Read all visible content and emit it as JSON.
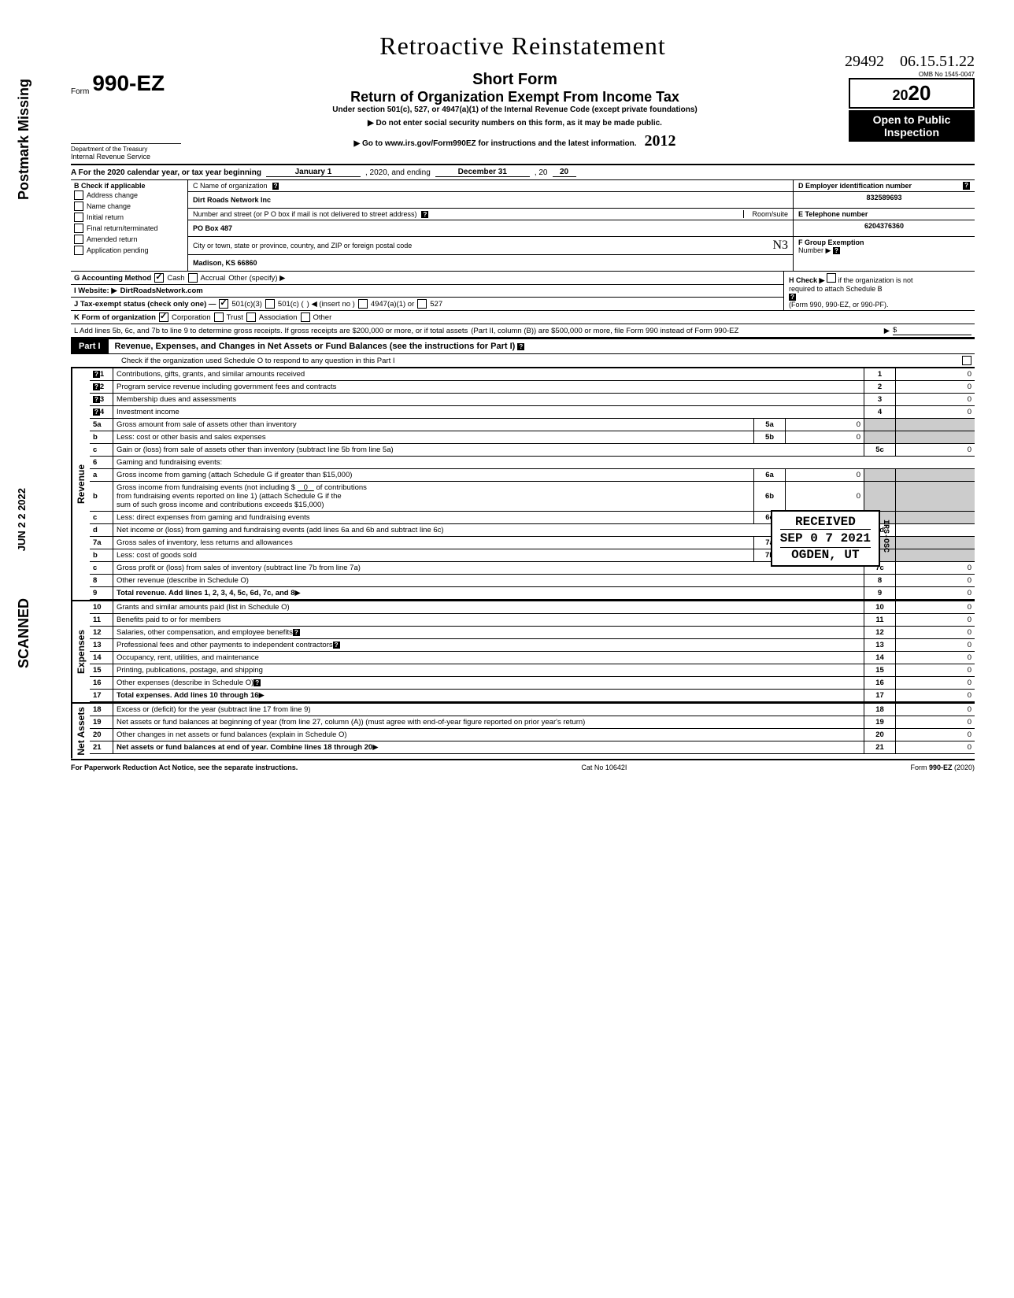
{
  "margin": {
    "postmark": "Postmark Missing",
    "scanned": "SCANNED",
    "date": "JUN 2 2 2022"
  },
  "handwritten": {
    "title": "Retroactive Reinstatement",
    "seq": "29492",
    "date": "06.15.51.22",
    "year_annot": "2012",
    "n3": "N3"
  },
  "header": {
    "form_sm": "Form",
    "form_lg": "990-EZ",
    "short": "Short Form",
    "title": "Return of Organization Exempt From Income Tax",
    "sub": "Under section 501(c), 527, or 4947(a)(1) of the Internal Revenue Code (except private foundations)",
    "line2": "▶ Do not enter social security numbers on this form, as it may be made public.",
    "line3": "▶ Go to www.irs.gov/Form990EZ for instructions and the latest information.",
    "dept1": "Department of the Treasury",
    "dept2": "Internal Revenue Service",
    "omb": "OMB No 1545-0047",
    "year": "2020",
    "open": "Open to Public",
    "inspection": "Inspection"
  },
  "rowA": {
    "label": "A For the 2020 calendar year, or tax year beginning",
    "mid": "January 1",
    "mid2": ", 2020, and ending",
    "end": "December 31",
    "end2": ", 20",
    "end3": "20"
  },
  "boxB": {
    "header": "B Check if applicable",
    "items": [
      "Address change",
      "Name change",
      "Initial return",
      "Final return/terminated",
      "Amended return",
      "Application pending"
    ]
  },
  "boxC": {
    "c_label": "C Name of organization",
    "c_value": "Dirt Roads Network Inc",
    "street_label": "Number and street (or P O box if mail is not delivered to street address)",
    "room_label": "Room/suite",
    "street_value": "PO Box 487",
    "city_label": "City or town, state or province, country, and ZIP or foreign postal code",
    "city_value": "Madison, KS 66860"
  },
  "boxD": {
    "d_label": "D Employer identification number",
    "d_value": "832589693",
    "e_label": "E Telephone number",
    "e_value": "6204376360",
    "f_label": "F Group Exemption",
    "f_label2": "Number ▶"
  },
  "rowG": {
    "label": "G Accounting Method",
    "cash": "Cash",
    "accrual": "Accrual",
    "other": "Other (specify) ▶"
  },
  "rowH": {
    "label": "H Check ▶",
    "text": "if the organization is not",
    "text2": "required to attach Schedule B",
    "text3": "(Form 990, 990-EZ, or 990-PF)."
  },
  "rowI": {
    "label": "I Website: ▶",
    "value": "DirtRoadsNetwork.com"
  },
  "rowJ": {
    "label": "J Tax-exempt status (check only one) —",
    "o1": "501(c)(3)",
    "o2": "501(c) (",
    "o2b": ") ◀ (insert no )",
    "o3": "4947(a)(1) or",
    "o4": "527"
  },
  "rowK": {
    "label": "K Form of organization",
    "o1": "Corporation",
    "o2": "Trust",
    "o3": "Association",
    "o4": "Other"
  },
  "rowL": {
    "text1": "L Add lines 5b, 6c, and 7b to line 9 to determine gross receipts. If gross receipts are $200,000 or more, or if total assets",
    "text2": "(Part II, column (B)) are $500,000 or more, file Form 990 instead of Form 990-EZ",
    "arrow": "▶",
    "amt": "$"
  },
  "part1": {
    "label": "Part I",
    "title": "Revenue, Expenses, and Changes in Net Assets or Fund Balances (see the instructions for Part I)",
    "check": "Check if the organization used Schedule O to respond to any question in this Part I"
  },
  "revenue": {
    "vlabel": "Revenue",
    "lines": [
      {
        "n": "1",
        "t": "Contributions, gifts, grants, and similar amounts received",
        "rn": "1",
        "v": "0",
        "q": true
      },
      {
        "n": "2",
        "t": "Program service revenue including government fees and contracts",
        "rn": "2",
        "v": "0",
        "q": true
      },
      {
        "n": "3",
        "t": "Membership dues and assessments",
        "rn": "3",
        "v": "0",
        "q": true
      },
      {
        "n": "4",
        "t": "Investment income",
        "rn": "4",
        "v": "0",
        "q": true
      }
    ],
    "l5a": {
      "n": "5a",
      "t": "Gross amount from sale of assets other than inventory",
      "rn": "5a",
      "v": "0"
    },
    "l5b": {
      "n": "b",
      "t": "Less: cost or other basis and sales expenses",
      "rn": "5b",
      "v": "0"
    },
    "l5c": {
      "n": "c",
      "t": "Gain or (loss) from sale of assets other than inventory (subtract line 5b from line 5a)",
      "rn": "5c",
      "v": "0"
    },
    "l6": {
      "n": "6",
      "t": "Gaming and fundraising events:"
    },
    "l6a": {
      "n": "a",
      "t": "Gross income from gaming (attach Schedule G if greater than $15,000)",
      "rn": "6a",
      "v": "0"
    },
    "l6b": {
      "n": "b",
      "t1": "Gross income from fundraising events (not including $",
      "t1v": "0",
      "t1b": "of contributions",
      "t2": "from fundraising events reported on line 1) (attach Schedule G if the",
      "t3": "sum of such gross income and contributions exceeds $15,000)",
      "rn": "6b",
      "v": "0"
    },
    "l6c": {
      "n": "c",
      "t": "Less: direct expenses from gaming and fundraising events",
      "rn": "6c",
      "v": "0"
    },
    "l6d": {
      "n": "d",
      "t": "Net income or (loss) from gaming and fundraising events (add lines 6a and 6b and subtract line 6c)",
      "rn": "6d",
      "v": ""
    },
    "l7a": {
      "n": "7a",
      "t": "Gross sales of inventory, less returns and allowances",
      "rn": "7a",
      "v": "0"
    },
    "l7b": {
      "n": "b",
      "t": "Less: cost of goods sold",
      "rn": "7b",
      "v": "0"
    },
    "l7c": {
      "n": "c",
      "t": "Gross profit or (loss) from sales of inventory (subtract line 7b from line 7a)",
      "rn": "7c",
      "v": "0"
    },
    "l8": {
      "n": "8",
      "t": "Other revenue (describe in Schedule O)",
      "rn": "8",
      "v": "0"
    },
    "l9": {
      "n": "9",
      "t": "Total revenue. Add lines 1, 2, 3, 4, 5c, 6d, 7c, and 8",
      "rn": "9",
      "v": "0",
      "bold": true
    }
  },
  "expenses": {
    "vlabel": "Expenses",
    "lines": [
      {
        "n": "10",
        "t": "Grants and similar amounts paid (list in Schedule O)",
        "rn": "10",
        "v": "0"
      },
      {
        "n": "11",
        "t": "Benefits paid to or for members",
        "rn": "11",
        "v": "0"
      },
      {
        "n": "12",
        "t": "Salaries, other compensation, and employee benefits",
        "rn": "12",
        "v": "0",
        "q": true
      },
      {
        "n": "13",
        "t": "Professional fees and other payments to independent contractors",
        "rn": "13",
        "v": "0",
        "q": true
      },
      {
        "n": "14",
        "t": "Occupancy, rent, utilities, and maintenance",
        "rn": "14",
        "v": "0"
      },
      {
        "n": "15",
        "t": "Printing, publications, postage, and shipping",
        "rn": "15",
        "v": "0"
      },
      {
        "n": "16",
        "t": "Other expenses (describe in Schedule O)",
        "rn": "16",
        "v": "0",
        "q": true
      },
      {
        "n": "17",
        "t": "Total expenses. Add lines 10 through 16",
        "rn": "17",
        "v": "0",
        "bold": true
      }
    ]
  },
  "netassets": {
    "vlabel": "Net Assets",
    "lines": [
      {
        "n": "18",
        "t": "Excess or (deficit) for the year (subtract line 17 from line 9)",
        "rn": "18",
        "v": "0"
      },
      {
        "n": "19",
        "t": "Net assets or fund balances at beginning of year (from line 27, column (A)) (must agree with end-of-year figure reported on prior year's return)",
        "rn": "19",
        "v": "0"
      },
      {
        "n": "20",
        "t": "Other changes in net assets or fund balances (explain in Schedule O)",
        "rn": "20",
        "v": "0"
      },
      {
        "n": "21",
        "t": "Net assets or fund balances at end of year. Combine lines 18 through 20",
        "rn": "21",
        "v": "0",
        "bold": true
      }
    ]
  },
  "stamp": {
    "received": "RECEIVED",
    "date": "SEP 0 7 2021",
    "loc": "OGDEN, UT",
    "side": "IRS-OSC"
  },
  "footer": {
    "left": "For Paperwork Reduction Act Notice, see the separate instructions.",
    "mid": "Cat No 10642I",
    "right": "Form 990-EZ (2020)"
  }
}
